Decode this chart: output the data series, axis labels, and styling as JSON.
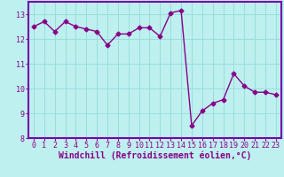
{
  "x": [
    0,
    1,
    2,
    3,
    4,
    5,
    6,
    7,
    8,
    9,
    10,
    11,
    12,
    13,
    14,
    15,
    16,
    17,
    18,
    19,
    20,
    21,
    22,
    23
  ],
  "y": [
    12.5,
    12.7,
    12.3,
    12.7,
    12.5,
    12.4,
    12.3,
    11.75,
    12.2,
    12.2,
    12.45,
    12.45,
    12.1,
    13.05,
    13.15,
    8.5,
    9.1,
    9.4,
    9.55,
    10.6,
    10.1,
    9.85,
    9.85,
    9.75
  ],
  "line_color": "#880088",
  "marker": "D",
  "markersize": 2.5,
  "linewidth": 1,
  "xlabel": "Windchill (Refroidissement éolien,°C)",
  "xlabel_fontsize": 7,
  "bg_color": "#bef0f0",
  "grid_color": "#99dddd",
  "spine_color": "#7700aa",
  "ylim": [
    8,
    13.5
  ],
  "xlim": [
    -0.5,
    23.5
  ],
  "yticks": [
    8,
    9,
    10,
    11,
    12,
    13
  ],
  "xticks": [
    0,
    1,
    2,
    3,
    4,
    5,
    6,
    7,
    8,
    9,
    10,
    11,
    12,
    13,
    14,
    15,
    16,
    17,
    18,
    19,
    20,
    21,
    22,
    23
  ],
  "tick_fontsize": 6,
  "xlabel_bold": true
}
